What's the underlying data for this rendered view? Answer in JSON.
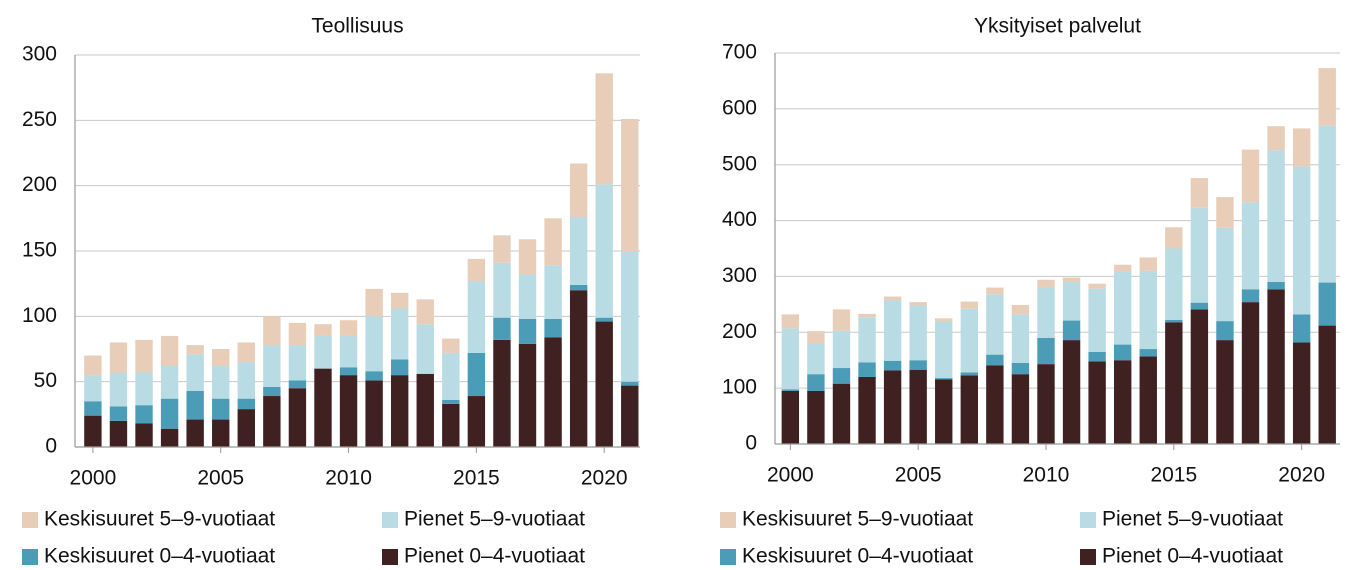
{
  "chart_data": [
    {
      "type": "bar",
      "stacked": true,
      "title": "Teollisuus",
      "x": [
        2000,
        2001,
        2002,
        2003,
        2004,
        2005,
        2006,
        2007,
        2008,
        2009,
        2010,
        2011,
        2012,
        2013,
        2014,
        2015,
        2016,
        2017,
        2018,
        2019,
        2020,
        2021
      ],
      "series": [
        {
          "name": "Pienet 0–4-vuotiaat",
          "color": "#3f2121",
          "values": [
            24,
            20,
            18,
            14,
            21,
            21,
            29,
            39,
            45,
            60,
            55,
            51,
            55,
            56,
            33,
            39,
            82,
            79,
            84,
            120,
            96,
            47
          ]
        },
        {
          "name": "Keskisuuret 0–4-vuotiaat",
          "color": "#4b9cb6",
          "values": [
            11,
            11,
            14,
            23,
            22,
            16,
            8,
            7,
            6,
            0,
            6,
            7,
            12,
            0,
            3,
            33,
            17,
            19,
            14,
            4,
            3,
            3
          ]
        },
        {
          "name": "Pienet 5–9-vuotiaat",
          "color": "#b9dbe4",
          "values": [
            20,
            26,
            25,
            25,
            28,
            25,
            28,
            32,
            27,
            25,
            24,
            42,
            39,
            38,
            36,
            55,
            42,
            34,
            41,
            52,
            102,
            100
          ]
        },
        {
          "name": "Keskisuuret 5–9-vuotiaat",
          "color": "#e8cdb9",
          "values": [
            15,
            23,
            25,
            23,
            7,
            13,
            15,
            22,
            17,
            9,
            12,
            21,
            12,
            19,
            11,
            17,
            21,
            27,
            36,
            41,
            85,
            101
          ]
        }
      ],
      "xlim": [
        1999.3,
        2021.4
      ],
      "xticks": [
        2000,
        2005,
        2010,
        2015,
        2020
      ],
      "ylim": [
        0,
        300
      ],
      "yticks": [
        0,
        50,
        100,
        150,
        200,
        250,
        300
      ],
      "grid": true
    },
    {
      "type": "bar",
      "stacked": true,
      "title": "Yksityiset palvelut",
      "x": [
        2000,
        2001,
        2002,
        2003,
        2004,
        2005,
        2006,
        2007,
        2008,
        2009,
        2010,
        2011,
        2012,
        2013,
        2014,
        2015,
        2016,
        2017,
        2018,
        2019,
        2020,
        2021
      ],
      "series": [
        {
          "name": "Pienet 0–4-vuotiaat",
          "color": "#3f2121",
          "values": [
            95,
            95,
            108,
            120,
            132,
            133,
            116,
            123,
            141,
            125,
            143,
            186,
            148,
            150,
            157,
            218,
            241,
            186,
            254,
            277,
            182,
            212
          ]
        },
        {
          "name": "Keskisuuret 0–4-vuotiaat",
          "color": "#4b9cb6",
          "values": [
            3,
            30,
            28,
            26,
            17,
            17,
            2,
            5,
            19,
            20,
            47,
            35,
            17,
            28,
            13,
            4,
            12,
            34,
            23,
            13,
            50,
            77
          ]
        },
        {
          "name": "Pienet 5–9-vuotiaat",
          "color": "#b9dbe4",
          "values": [
            109,
            55,
            67,
            81,
            108,
            98,
            102,
            114,
            108,
            87,
            90,
            69,
            113,
            130,
            140,
            128,
            170,
            167,
            156,
            236,
            265,
            281
          ]
        },
        {
          "name": "Keskisuuret 5–9-vuotiaat",
          "color": "#e8cdb9",
          "values": [
            25,
            22,
            38,
            6,
            7,
            6,
            5,
            13,
            12,
            17,
            14,
            8,
            9,
            13,
            24,
            38,
            53,
            55,
            94,
            43,
            68,
            103
          ]
        }
      ],
      "xlim": [
        1999.4,
        2021.5
      ],
      "xticks": [
        2000,
        2005,
        2010,
        2015,
        2020
      ],
      "ylim": [
        0,
        700
      ],
      "yticks": [
        0,
        100,
        200,
        300,
        400,
        500,
        600,
        700
      ],
      "grid": true
    }
  ]
}
